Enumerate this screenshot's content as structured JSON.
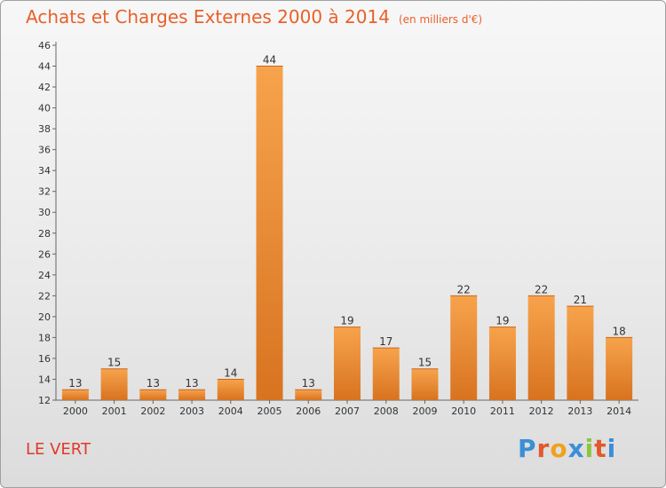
{
  "header": {
    "title": "Achats et Charges Externes 2000 à 2014",
    "unit": "(en milliers d'€)"
  },
  "footer": {
    "place": "LE VERT",
    "logo": "Proxiti"
  },
  "colors": {
    "title": "#e8602a",
    "place": "#e03a2a",
    "bar_light": "#f7a34c",
    "bar_dark": "#d87320",
    "logo_letters": [
      "#3b8fd6",
      "#e2592a",
      "#f0a11c",
      "#3b8fd6",
      "#8cc63e",
      "#e2592a",
      "#3b8fd6"
    ]
  },
  "chart_data": {
    "type": "bar",
    "title": "Achats et Charges Externes 2000 à 2014",
    "categories": [
      "2000",
      "2001",
      "2002",
      "2003",
      "2004",
      "2005",
      "2006",
      "2007",
      "2008",
      "2009",
      "2010",
      "2011",
      "2012",
      "2013",
      "2014"
    ],
    "values": [
      13,
      15,
      13,
      13,
      14,
      44,
      13,
      19,
      17,
      15,
      22,
      19,
      22,
      21,
      18
    ],
    "ylim": [
      12,
      46
    ],
    "yticks": [
      12,
      14,
      16,
      18,
      20,
      22,
      24,
      26,
      28,
      30,
      32,
      34,
      36,
      38,
      40,
      42,
      44,
      46
    ],
    "grid": false,
    "xlabel": "",
    "ylabel": ""
  }
}
